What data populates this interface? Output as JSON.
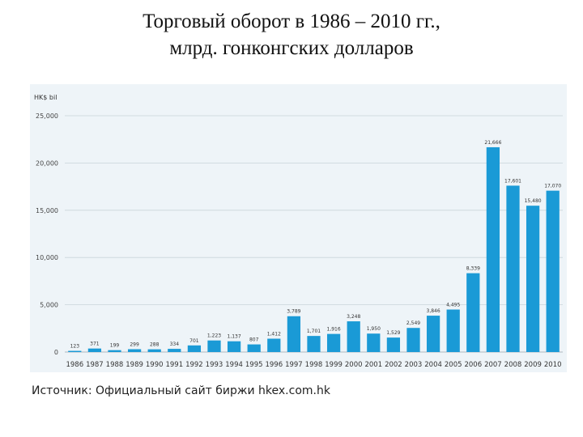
{
  "slide": {
    "title_line1": "Торговый оборот в 1986 – 2010 гг.,",
    "title_line2": "млрд. гонконгских долларов",
    "source": "Источник: Официальный сайт биржи hkex.com.hk"
  },
  "chart_data": {
    "type": "bar",
    "title": "",
    "ylabel": "HK$ bil",
    "xlabel": "",
    "ylim": [
      0,
      25000
    ],
    "yticks": [
      0,
      5000,
      10000,
      15000,
      20000,
      25000
    ],
    "ytick_labels": [
      "0",
      "5,000",
      "10,000",
      "15,000",
      "20,000",
      "25,000"
    ],
    "grid": true,
    "bar_color": "#1a9ad6",
    "categories": [
      "1986",
      "1987",
      "1988",
      "1989",
      "1990",
      "1991",
      "1992",
      "1993",
      "1994",
      "1995",
      "1996",
      "1997",
      "1998",
      "1999",
      "2000",
      "2001",
      "2002",
      "2003",
      "2004",
      "2005",
      "2006",
      "2007",
      "2008",
      "2009",
      "2010"
    ],
    "values": [
      123,
      371,
      199,
      299,
      288,
      334,
      701,
      1223,
      1137,
      807,
      1412,
      3789,
      1701,
      1916,
      3248,
      1950,
      1529,
      2549,
      3846,
      4495,
      8339,
      21666,
      17601,
      15480,
      17070
    ],
    "value_labels": [
      "123",
      "371",
      "199",
      "299",
      "288",
      "334",
      "701",
      "1,223",
      "1,137",
      "807",
      "1,412",
      "3,789",
      "1,701",
      "1,916",
      "3,248",
      "1,950",
      "1,529",
      "2,549",
      "3,846",
      "4,495",
      "8,339",
      "21,666",
      "17,601",
      "15,480",
      "17,070"
    ]
  }
}
